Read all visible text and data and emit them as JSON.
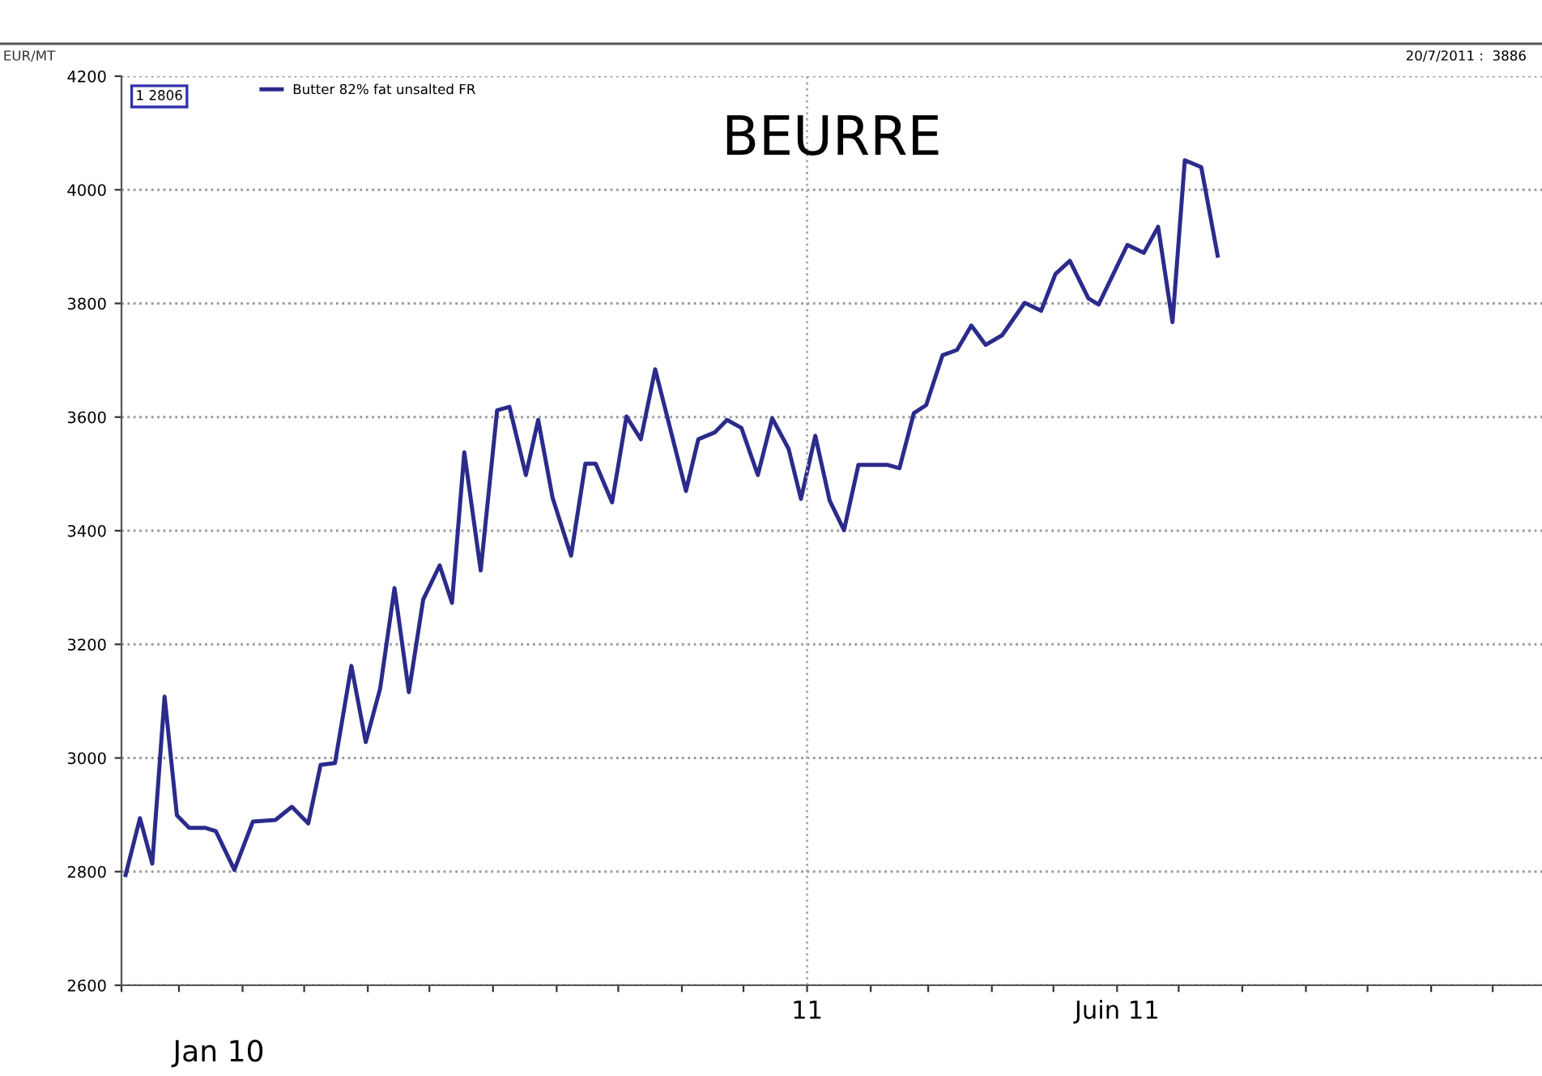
{
  "chart_data": {
    "type": "line",
    "title": "BEURRE",
    "ylabel": "EUR/MT",
    "x": [
      "2010-02-03",
      "2010-02-10",
      "2010-02-16",
      "2010-02-22",
      "2010-02-28",
      "2010-03-06",
      "2010-03-14",
      "2010-03-19",
      "2010-03-28",
      "2010-04-06",
      "2010-04-17",
      "2010-04-25",
      "2010-05-03",
      "2010-05-09",
      "2010-05-16",
      "2010-05-24",
      "2010-05-31",
      "2010-06-07",
      "2010-06-14",
      "2010-06-21",
      "2010-06-28",
      "2010-07-06",
      "2010-07-12",
      "2010-07-18",
      "2010-07-26",
      "2010-08-03",
      "2010-08-09",
      "2010-08-17",
      "2010-08-23",
      "2010-08-30",
      "2010-09-08",
      "2010-09-15",
      "2010-09-20",
      "2010-09-28",
      "2010-10-05",
      "2010-10-12",
      "2010-10-19",
      "2010-11-03",
      "2010-11-09",
      "2010-11-17",
      "2010-11-23",
      "2010-11-30",
      "2010-12-08",
      "2010-12-15",
      "2010-12-23",
      "2010-12-29",
      "2011-01-05",
      "2011-01-12",
      "2011-01-19",
      "2011-01-26",
      "2011-02-04",
      "2011-02-09",
      "2011-02-15",
      "2011-02-22",
      "2011-02-28",
      "2011-03-08",
      "2011-03-15",
      "2011-03-22",
      "2011-03-29",
      "2011-04-06",
      "2011-04-17",
      "2011-04-25",
      "2011-05-02",
      "2011-05-09",
      "2011-05-18",
      "2011-05-23",
      "2011-06-06",
      "2011-06-14",
      "2011-06-21",
      "2011-06-28",
      "2011-07-04",
      "2011-07-12",
      "2011-07-20"
    ],
    "series": [
      {
        "name": "Butter 82% fat unsalted FR",
        "color": "#2b2b8c",
        "values": [
          2794,
          2894,
          2814,
          3108,
          2899,
          2877,
          2877,
          2871,
          2803,
          2888,
          2891,
          2914,
          2885,
          2988,
          2991,
          3162,
          3028,
          3122,
          3299,
          3116,
          3279,
          3339,
          3273,
          3538,
          3330,
          3612,
          3618,
          3498,
          3595,
          3458,
          3356,
          3518,
          3518,
          3450,
          3601,
          3561,
          3684,
          3470,
          3561,
          3573,
          3595,
          3581,
          3498,
          3598,
          3544,
          3456,
          3567,
          3453,
          3401,
          3516,
          3516,
          3516,
          3510,
          3607,
          3621,
          3709,
          3718,
          3761,
          3727,
          3744,
          3801,
          3787,
          3852,
          3875,
          3809,
          3798,
          3903,
          3889,
          3935,
          3767,
          4052,
          4040,
          3884
        ]
      }
    ],
    "xlim": [
      "2010-02-01",
      "2011-12-25"
    ],
    "xticks": [
      {
        "value": "2010-02-01",
        "label": null
      },
      {
        "value": "2010-03-01",
        "label": null
      },
      {
        "value": "2010-04-01",
        "label": null
      },
      {
        "value": "2010-05-01",
        "label": null
      },
      {
        "value": "2010-06-01",
        "label": null
      },
      {
        "value": "2010-07-01",
        "label": null
      },
      {
        "value": "2010-08-01",
        "label": null
      },
      {
        "value": "2010-09-01",
        "label": null
      },
      {
        "value": "2010-10-01",
        "label": null
      },
      {
        "value": "2010-11-01",
        "label": null
      },
      {
        "value": "2010-12-01",
        "label": null
      },
      {
        "value": "2011-01-01",
        "label": "11"
      },
      {
        "value": "2011-02-01",
        "label": null
      },
      {
        "value": "2011-03-01",
        "label": null
      },
      {
        "value": "2011-04-01",
        "label": null
      },
      {
        "value": "2011-05-01",
        "label": null
      },
      {
        "value": "2011-06-01",
        "label": "Juin 11"
      },
      {
        "value": "2011-07-01",
        "label": null
      },
      {
        "value": "2011-08-01",
        "label": null
      },
      {
        "value": "2011-09-01",
        "label": null
      },
      {
        "value": "2011-10-01",
        "label": null
      },
      {
        "value": "2011-11-01",
        "label": null
      },
      {
        "value": "2011-12-01",
        "label": null
      }
    ],
    "ylim": [
      2600,
      4200
    ],
    "yticks": [
      2600,
      2800,
      3000,
      3200,
      3400,
      3600,
      3800,
      4000,
      4200
    ],
    "grid": "y",
    "ref_lines": [
      {
        "axis": "x",
        "value": "2011-01-01",
        "color": "#aaaaaa",
        "line_style": "dotted"
      }
    ],
    "legend": "top left",
    "annotations": [
      "1 2806",
      "20/7/2011 :  3886",
      "Jan 10"
    ]
  }
}
